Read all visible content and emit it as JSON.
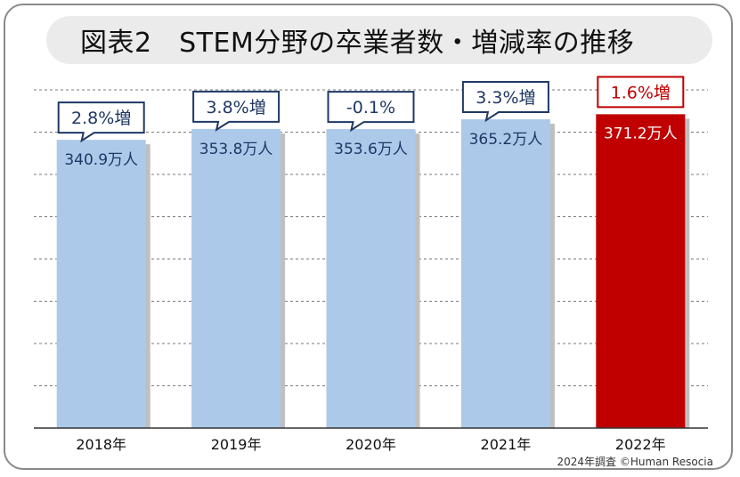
{
  "title": "図表2　STEM分野の卒業者数・増減率の推移",
  "footer": "2024年調査 ©Human Resocia",
  "colors": {
    "bar_default": "#adc9ea",
    "bar_highlight": "#c00000",
    "label_default": "#1f3864",
    "label_highlight_bar": "#ffffff",
    "callout_default_border": "#1f3864",
    "callout_highlight_border": "#c00000",
    "callout_highlight_text": "#c00000",
    "title_background": "#ebebeb"
  },
  "chart_data": {
    "type": "bar",
    "categories": [
      "2018年",
      "2019年",
      "2020年",
      "2021年",
      "2022年"
    ],
    "values": [
      340.9,
      353.8,
      353.6,
      365.2,
      371.2
    ],
    "value_labels": [
      "340.9万人",
      "353.8万人",
      "353.6万人",
      "365.2万人",
      "371.2万人"
    ],
    "change_labels": [
      "2.8%増",
      "3.8%増",
      "-0.1%",
      "3.3%増",
      "1.6%増"
    ],
    "highlight_index": 4,
    "title": "図表2　STEM分野の卒業者数・増減率の推移",
    "xlabel": "",
    "ylabel": "",
    "ylim": [
      0,
      400
    ],
    "grid": true
  }
}
